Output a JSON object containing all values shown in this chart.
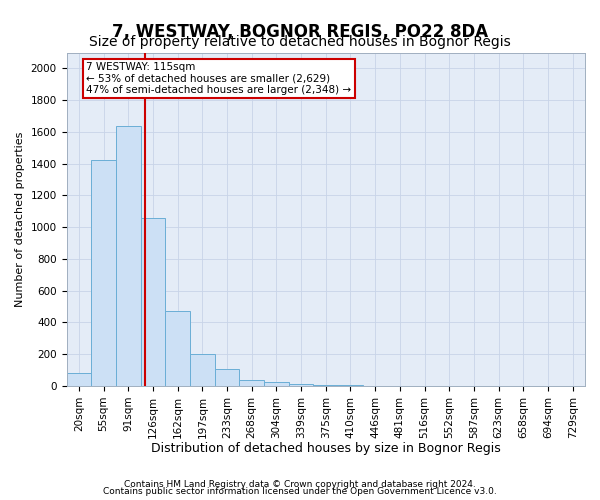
{
  "title": "7, WESTWAY, BOGNOR REGIS, PO22 8DA",
  "subtitle": "Size of property relative to detached houses in Bognor Regis",
  "xlabel": "Distribution of detached houses by size in Bognor Regis",
  "ylabel": "Number of detached properties",
  "footnote1": "Contains HM Land Registry data © Crown copyright and database right 2024.",
  "footnote2": "Contains public sector information licensed under the Open Government Licence v3.0.",
  "bar_labels": [
    "20sqm",
    "55sqm",
    "91sqm",
    "126sqm",
    "162sqm",
    "197sqm",
    "233sqm",
    "268sqm",
    "304sqm",
    "339sqm",
    "375sqm",
    "410sqm",
    "446sqm",
    "481sqm",
    "516sqm",
    "552sqm",
    "587sqm",
    "623sqm",
    "658sqm",
    "694sqm",
    "729sqm"
  ],
  "bar_values": [
    80,
    1420,
    1640,
    1060,
    475,
    200,
    105,
    40,
    25,
    15,
    8,
    5,
    3,
    2,
    1,
    1,
    0,
    0,
    0,
    0,
    0
  ],
  "bar_color": "#cce0f5",
  "bar_edgecolor": "#6aaed6",
  "bar_width": 1.0,
  "ylim": [
    0,
    2100
  ],
  "yticks": [
    0,
    200,
    400,
    600,
    800,
    1000,
    1200,
    1400,
    1600,
    1800,
    2000
  ],
  "vline_color": "#cc0000",
  "annotation_text_line1": "7 WESTWAY: 115sqm",
  "annotation_text_line2": "← 53% of detached houses are smaller (2,629)",
  "annotation_text_line3": "47% of semi-detached houses are larger (2,348) →",
  "grid_color": "#c8d4e8",
  "background_color": "#e4ecf7",
  "title_fontsize": 12,
  "subtitle_fontsize": 10,
  "xlabel_fontsize": 9,
  "ylabel_fontsize": 8,
  "tick_fontsize": 7.5,
  "footnote_fontsize": 6.5
}
